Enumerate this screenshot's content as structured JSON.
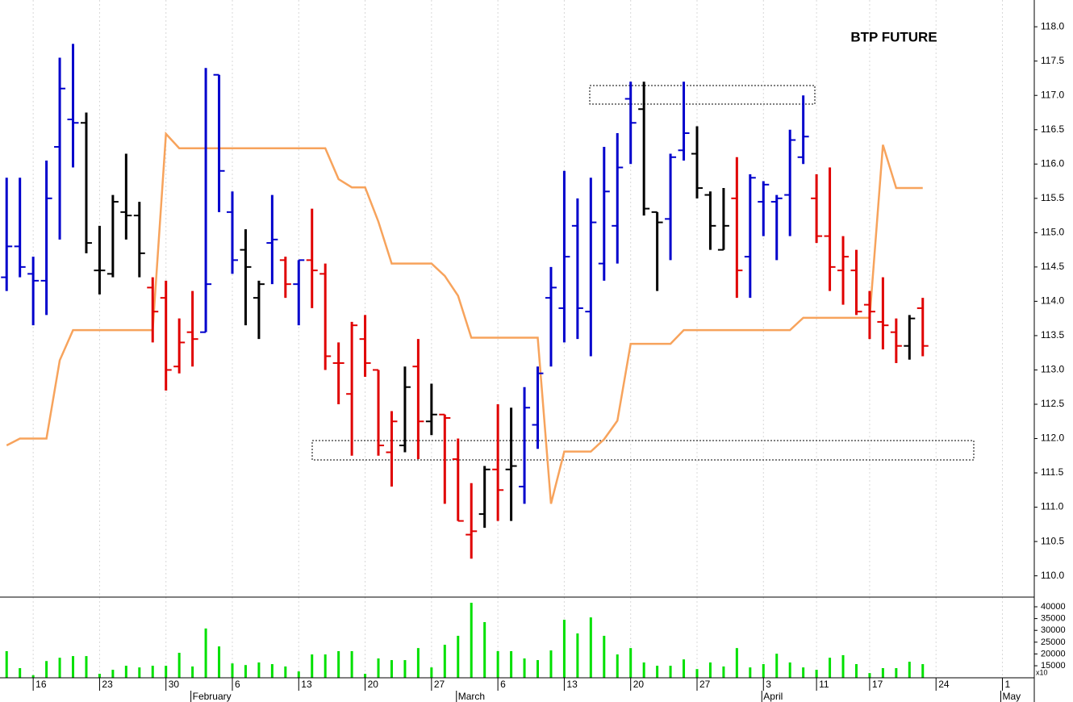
{
  "chart_data": {
    "type": "ohlc",
    "title": "BTP FUTURE",
    "open": [
      114.35,
      114.8,
      114.4,
      114.3,
      116.25,
      116.65,
      116.6,
      114.45,
      114.4,
      115.3,
      115.25,
      114.2,
      114.05,
      113.05,
      113.55,
      113.55,
      117.3,
      115.3,
      114.75,
      114.05,
      114.85,
      114.6,
      114.25,
      114.6,
      114.4,
      113.1,
      112.65,
      113.45,
      113.0,
      111.8,
      111.9,
      113.05,
      112.25,
      112.35,
      111.7,
      110.6,
      110.9,
      111.55,
      111.55,
      111.3,
      112.2,
      114.05,
      113.9,
      115.1,
      113.85,
      114.55,
      115.1,
      116.95,
      116.8,
      115.3,
      115.2,
      116.2,
      116.15,
      115.55,
      114.75,
      115.5,
      114.65,
      115.45,
      115.45,
      115.55,
      116.1,
      115.5,
      114.95,
      114.45,
      114.45,
      113.95,
      113.7,
      113.55,
      113.35,
      113.9
    ],
    "high": [
      115.8,
      115.8,
      114.65,
      116.05,
      117.55,
      117.75,
      116.75,
      115.1,
      115.55,
      116.15,
      115.45,
      114.35,
      114.3,
      113.75,
      114.15,
      117.4,
      117.3,
      115.6,
      115.05,
      114.3,
      115.55,
      114.65,
      114.6,
      115.35,
      114.55,
      113.4,
      113.7,
      113.8,
      113.0,
      112.4,
      113.05,
      113.45,
      112.8,
      112.35,
      112.0,
      111.35,
      111.6,
      112.5,
      112.45,
      112.75,
      113.05,
      114.5,
      115.9,
      115.5,
      115.8,
      116.25,
      116.45,
      117.2,
      117.2,
      115.3,
      116.15,
      117.2,
      116.55,
      115.6,
      115.65,
      116.1,
      115.85,
      115.75,
      115.55,
      116.5,
      117.0,
      115.85,
      115.95,
      114.95,
      114.75,
      114.15,
      114.35,
      113.75,
      113.8,
      114.05
    ],
    "low": [
      114.15,
      114.35,
      113.65,
      113.8,
      114.9,
      115.95,
      114.7,
      114.1,
      114.35,
      114.9,
      114.35,
      113.4,
      112.7,
      112.95,
      113.05,
      113.55,
      115.3,
      114.4,
      113.65,
      113.45,
      114.25,
      114.05,
      113.65,
      113.9,
      113.0,
      112.5,
      111.75,
      112.9,
      111.75,
      111.3,
      111.8,
      111.7,
      112.05,
      111.05,
      110.8,
      110.25,
      110.7,
      110.8,
      110.8,
      111.05,
      111.85,
      113.05,
      113.4,
      113.45,
      113.2,
      114.3,
      114.55,
      116.0,
      115.25,
      114.15,
      114.6,
      116.05,
      115.5,
      114.75,
      114.75,
      114.05,
      114.05,
      114.95,
      114.6,
      114.95,
      116.0,
      114.85,
      114.15,
      113.95,
      113.8,
      113.45,
      113.3,
      113.1,
      113.15,
      113.2
    ],
    "close": [
      114.8,
      114.5,
      114.3,
      115.5,
      117.1,
      116.6,
      114.85,
      114.45,
      115.45,
      115.25,
      114.7,
      113.85,
      113.0,
      113.4,
      113.45,
      114.25,
      115.9,
      114.6,
      114.5,
      114.25,
      114.9,
      114.25,
      114.6,
      114.45,
      113.2,
      113.1,
      113.65,
      113.1,
      111.9,
      112.25,
      112.75,
      112.25,
      112.35,
      112.3,
      110.8,
      110.65,
      111.55,
      111.25,
      111.6,
      112.45,
      112.95,
      114.2,
      114.65,
      113.9,
      115.15,
      115.6,
      115.95,
      116.6,
      115.35,
      115.15,
      116.1,
      116.45,
      115.65,
      115.1,
      115.1,
      114.45,
      115.8,
      115.7,
      115.5,
      116.35,
      116.4,
      114.95,
      114.5,
      114.65,
      113.85,
      113.85,
      113.65,
      113.35,
      113.75,
      113.35
    ],
    "bar_colors": [
      "#0000cc",
      "#0000cc",
      "#0000cc",
      "#0000cc",
      "#0000cc",
      "#0000cc",
      "#000000",
      "#000000",
      "#000000",
      "#000000",
      "#000000",
      "#e00000",
      "#e00000",
      "#e00000",
      "#e00000",
      "#0000cc",
      "#0000cc",
      "#0000cc",
      "#000000",
      "#000000",
      "#0000cc",
      "#e00000",
      "#0000cc",
      "#e00000",
      "#e00000",
      "#e00000",
      "#e00000",
      "#e00000",
      "#e00000",
      "#e00000",
      "#000000",
      "#e00000",
      "#000000",
      "#e00000",
      "#e00000",
      "#e00000",
      "#000000",
      "#e00000",
      "#000000",
      "#0000cc",
      "#0000cc",
      "#0000cc",
      "#0000cc",
      "#0000cc",
      "#0000cc",
      "#0000cc",
      "#0000cc",
      "#0000cc",
      "#000000",
      "#000000",
      "#0000cc",
      "#0000cc",
      "#000000",
      "#000000",
      "#000000",
      "#e00000",
      "#0000cc",
      "#0000cc",
      "#0000cc",
      "#0000cc",
      "#0000cc",
      "#e00000",
      "#e00000",
      "#e00000",
      "#e00000",
      "#e00000",
      "#e00000",
      "#e00000",
      "#000000",
      "#e00000"
    ],
    "overlay": {
      "type": "line",
      "color": "#f7a35c",
      "values": [
        111.9,
        112.0,
        112.0,
        112.0,
        113.14,
        113.58,
        113.58,
        113.58,
        113.58,
        113.58,
        113.58,
        113.58,
        116.44,
        116.23,
        116.23,
        116.23,
        116.23,
        116.23,
        116.23,
        116.23,
        116.23,
        116.23,
        116.23,
        116.23,
        116.23,
        115.78,
        115.66,
        115.66,
        115.16,
        114.55,
        114.55,
        114.55,
        114.55,
        114.37,
        114.08,
        113.47,
        113.47,
        113.47,
        113.47,
        113.47,
        113.47,
        111.05,
        111.81,
        111.81,
        111.81,
        111.99,
        112.26,
        113.38,
        113.38,
        113.38,
        113.38,
        113.58,
        113.58,
        113.58,
        113.58,
        113.58,
        113.58,
        113.58,
        113.58,
        113.58,
        113.76,
        113.76,
        113.76,
        113.76,
        113.76,
        113.76,
        116.28,
        115.65,
        115.65,
        115.65
      ]
    },
    "xlim": [
      -0.5,
      77.4
    ],
    "xticks": [
      {
        "value": 2,
        "label": "16"
      },
      {
        "value": 7,
        "label": "23"
      },
      {
        "value": 12,
        "label": "30"
      },
      {
        "value": 17,
        "label": "6"
      },
      {
        "value": 22,
        "label": "13"
      },
      {
        "value": 27,
        "label": "20"
      },
      {
        "value": 32,
        "label": "27"
      },
      {
        "value": 37,
        "label": "6"
      },
      {
        "value": 42,
        "label": "13"
      },
      {
        "value": 47,
        "label": "20"
      },
      {
        "value": 52,
        "label": "27"
      },
      {
        "value": 57,
        "label": "3"
      },
      {
        "value": 61,
        "label": "11"
      },
      {
        "value": 65,
        "label": "17"
      },
      {
        "value": 70,
        "label": "24"
      },
      {
        "value": 75,
        "label": "1"
      }
    ],
    "month_labels": [
      {
        "value": 14,
        "label": "February"
      },
      {
        "value": 34,
        "label": "March"
      },
      {
        "value": 57,
        "label": "April"
      },
      {
        "value": 75,
        "label": "May"
      }
    ],
    "ylim": [
      109.69,
      118.39
    ],
    "yticks": [
      {
        "value": 110,
        "label": "110.0"
      },
      {
        "value": 110.5,
        "label": "110.5"
      },
      {
        "value": 111,
        "label": "111.0"
      },
      {
        "value": 111.5,
        "label": "111.5"
      },
      {
        "value": 112,
        "label": "112.0"
      },
      {
        "value": 112.5,
        "label": "112.5"
      },
      {
        "value": 113,
        "label": "113.0"
      },
      {
        "value": 113.5,
        "label": "113.5"
      },
      {
        "value": 114,
        "label": "114.0"
      },
      {
        "value": 114.5,
        "label": "114.5"
      },
      {
        "value": 115,
        "label": "115.0"
      },
      {
        "value": 115.5,
        "label": "115.5"
      },
      {
        "value": 116,
        "label": "116.0"
      },
      {
        "value": 116.5,
        "label": "116.5"
      },
      {
        "value": 117,
        "label": "117.0"
      },
      {
        "value": 117.5,
        "label": "117.5"
      },
      {
        "value": 118,
        "label": "118.0"
      }
    ],
    "grid": true,
    "volume": {
      "type": "bar",
      "color": "#00e000",
      "values": [
        21200,
        14000,
        11000,
        17000,
        18400,
        19100,
        19100,
        11600,
        13300,
        15000,
        14300,
        15000,
        15000,
        20500,
        14700,
        30800,
        23200,
        16000,
        15300,
        16400,
        15700,
        14700,
        12600,
        19800,
        19800,
        21200,
        21200,
        11600,
        18100,
        17400,
        17400,
        22500,
        14300,
        23900,
        27700,
        41700,
        33500,
        21200,
        21200,
        18100,
        17400,
        21500,
        34500,
        28700,
        35500,
        27700,
        19800,
        22500,
        16400,
        15000,
        15000,
        17700,
        13600,
        16400,
        14700,
        22500,
        14300,
        15700,
        20100,
        16400,
        14300,
        13300,
        18400,
        19500,
        15700,
        11900,
        14000,
        14000,
        16700,
        15700
      ],
      "ylim": [
        9900,
        44100
      ],
      "yticks": [
        15000,
        20000,
        25000,
        30000,
        35000,
        40000
      ],
      "unit_label": "x10"
    }
  }
}
